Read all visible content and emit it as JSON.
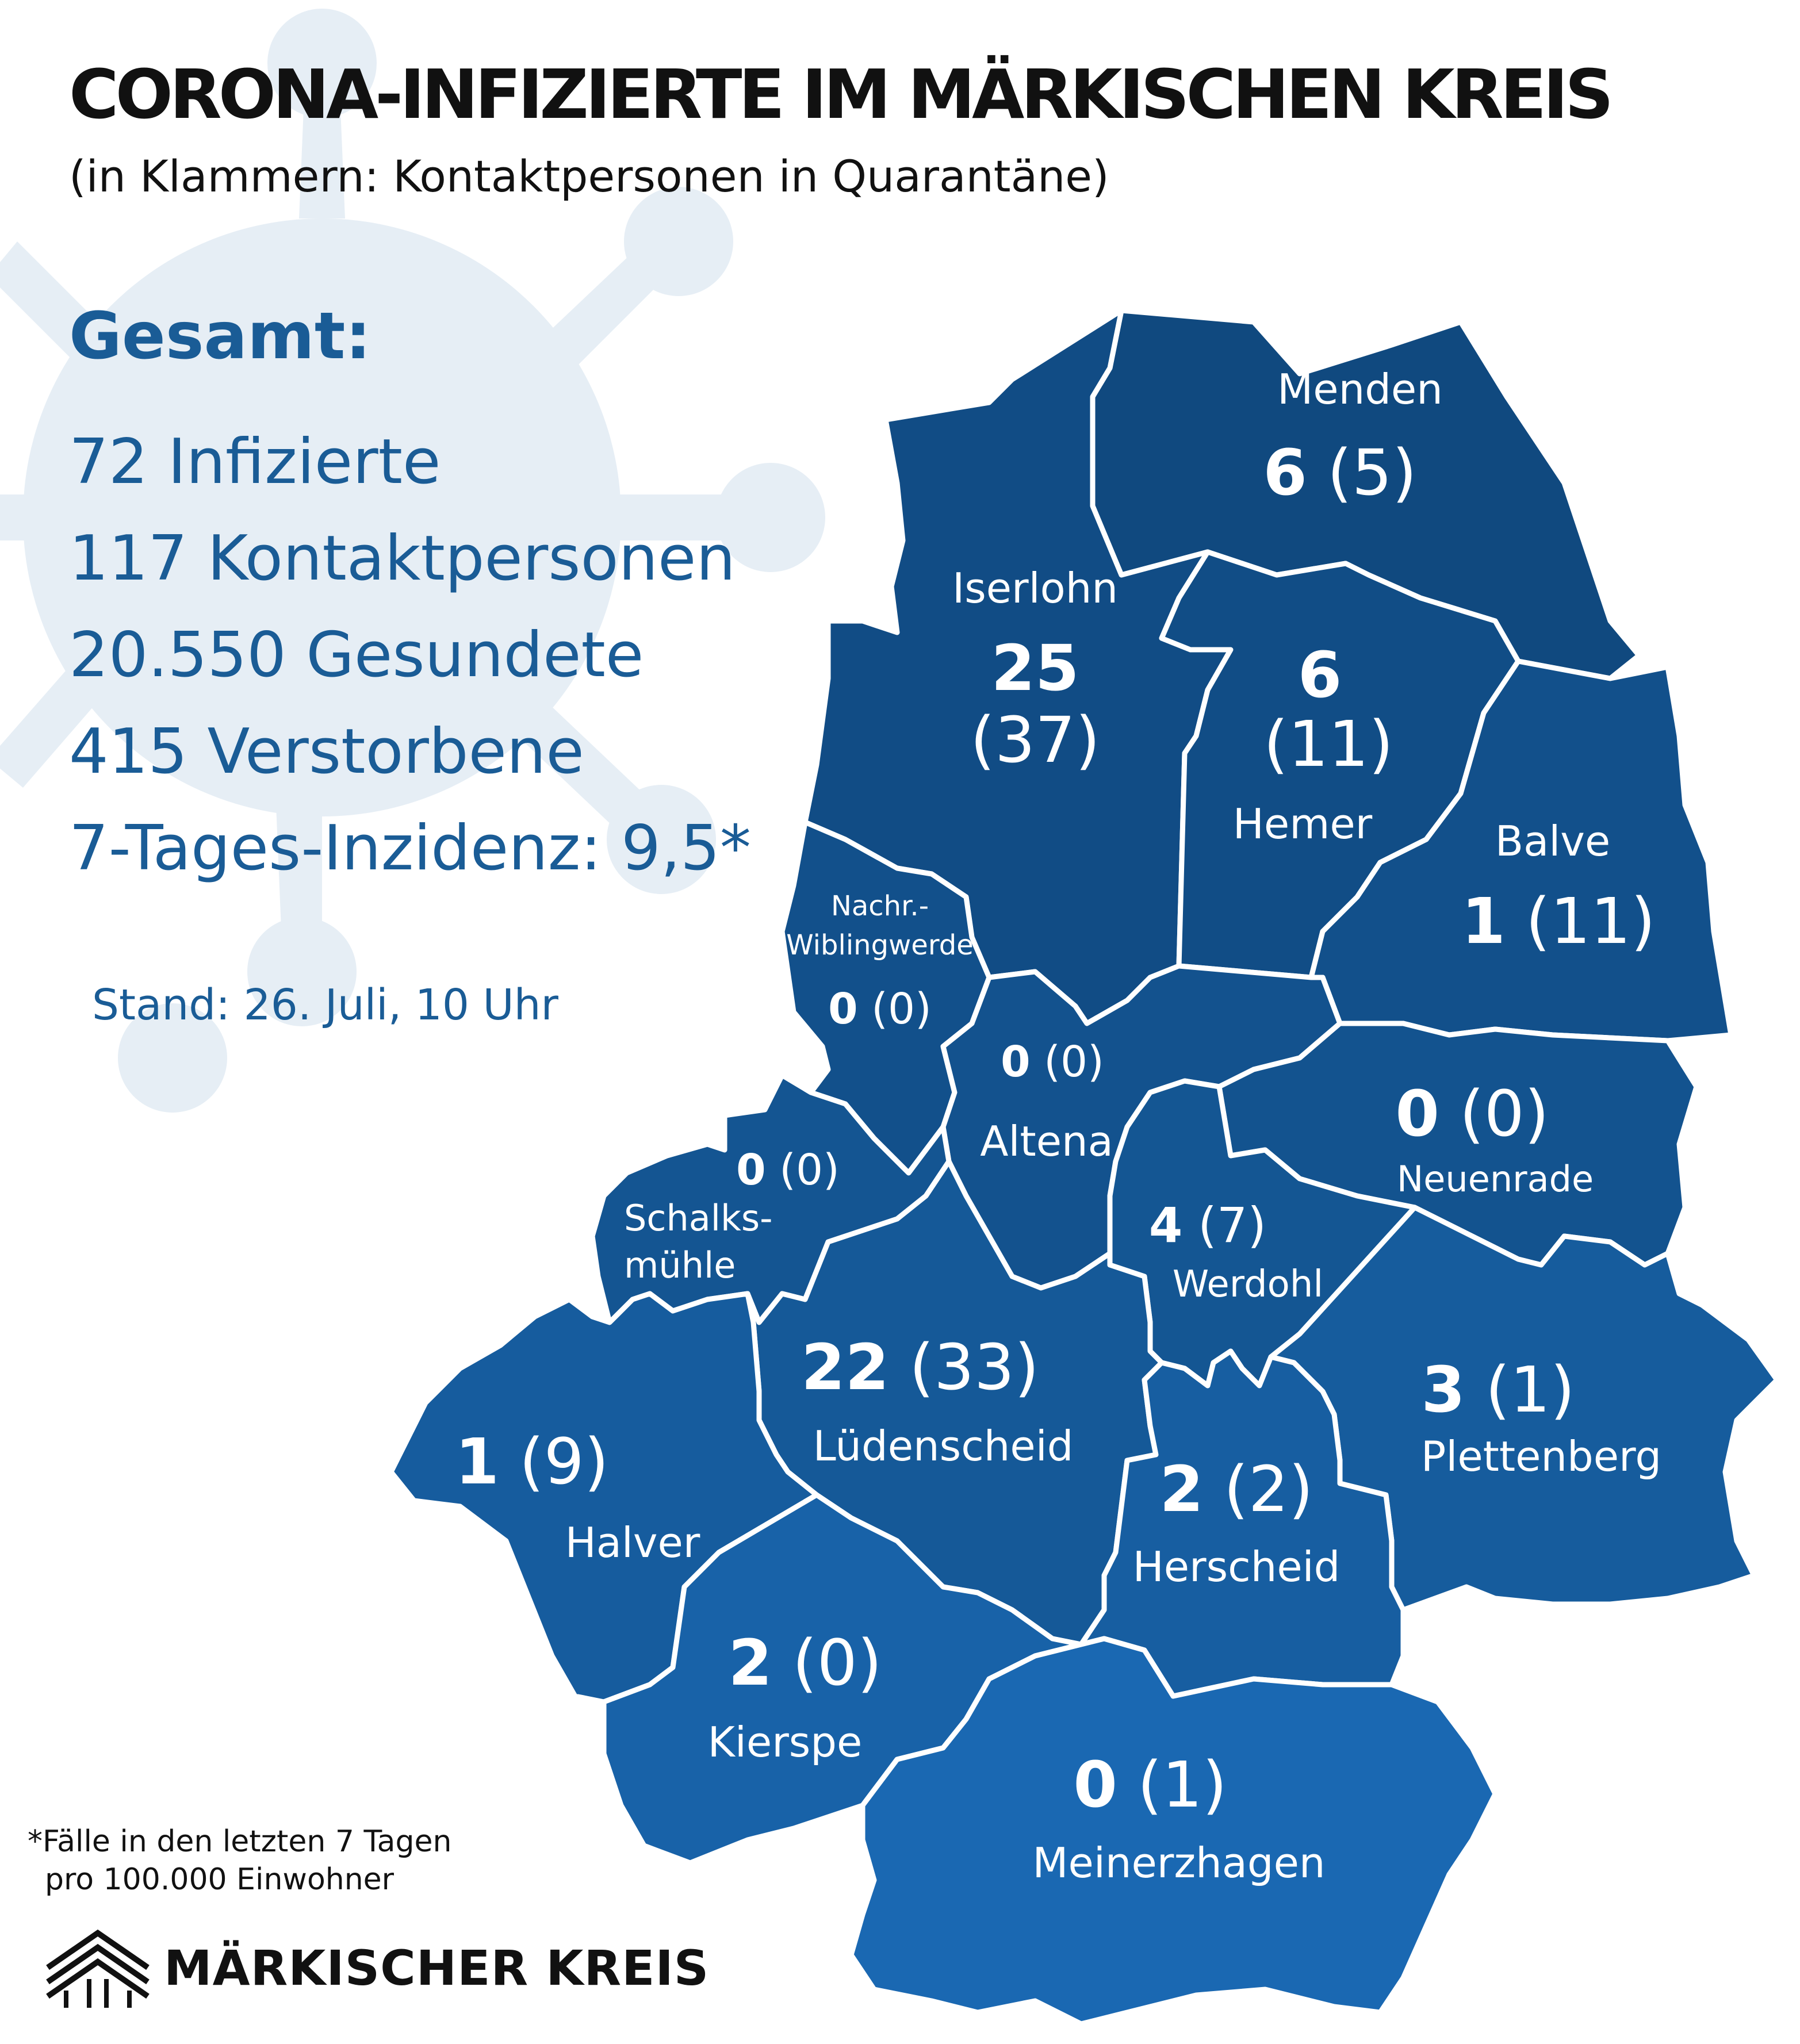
{
  "header": {
    "title": "CORONA-INFIZIERTE IM MÄRKISCHEN KREIS",
    "subtitle": "(in Klammern: Kontaktpersonen in Quarantäne)"
  },
  "summary": {
    "heading": "Gesamt:",
    "lines": [
      "72 Infizierte",
      "117 Kontaktpersonen",
      "20.550 Gesundete",
      "415 Verstorbene",
      "7-Tages-Inzidenz: 9,5*"
    ],
    "stand": "Stand: 26. Juli, 10 Uhr"
  },
  "map": {
    "colors": {
      "north": "#0e4a82",
      "south": "#1a6cb8",
      "border": "#ffffff",
      "text_accent": "#1a5c96",
      "virus_bg": "#e6eef5"
    },
    "regions": [
      {
        "name": "Menden",
        "infected": "6",
        "contacts": "(5)",
        "fill": "#10497f"
      },
      {
        "name": "Iserlohn",
        "infected": "25",
        "contacts": "(37)",
        "fill": "#114c85"
      },
      {
        "name": "Hemer",
        "infected": "6",
        "contacts": "(11)",
        "fill": "#114d86"
      },
      {
        "name": "Balve",
        "infected": "1",
        "contacts": "(11)",
        "fill": "#12508b"
      },
      {
        "name_lines": [
          "Nachr.-",
          "Wiblingwerde"
        ],
        "infected": "0",
        "contacts": "(0)",
        "fill": "#12508b"
      },
      {
        "name": "Altena",
        "infected": "0",
        "contacts": "(0)",
        "fill": "#13528e"
      },
      {
        "name": "Neuenrade",
        "infected": "0",
        "contacts": "(0)",
        "fill": "#13538f"
      },
      {
        "name_lines": [
          "Schalks-",
          "mühle"
        ],
        "infected": "0",
        "contacts": "(0)",
        "fill": "#145592"
      },
      {
        "name": "Werdohl",
        "infected": "4",
        "contacts": "(7)",
        "fill": "#145693"
      },
      {
        "name": "Lüdenscheid",
        "infected": "22",
        "contacts": "(33)",
        "fill": "#155998"
      },
      {
        "name": "Halver",
        "infected": "1",
        "contacts": "(9)",
        "fill": "#165c9e"
      },
      {
        "name": "Plettenberg",
        "infected": "3",
        "contacts": "(1)",
        "fill": "#165c9d"
      },
      {
        "name": "Herscheid",
        "infected": "2",
        "contacts": "(2)",
        "fill": "#175ea1"
      },
      {
        "name": "Kierspe",
        "infected": "2",
        "contacts": "(0)",
        "fill": "#1862a8"
      },
      {
        "name": "Meinerzhagen",
        "infected": "0",
        "contacts": "(1)",
        "fill": "#1a68b2"
      }
    ]
  },
  "footnote": {
    "lines": [
      "*Fälle in den letzten 7 Tagen",
      "pro 100.000 Einwohner"
    ]
  },
  "logo": {
    "text": "MÄRKISCHER KREIS"
  }
}
